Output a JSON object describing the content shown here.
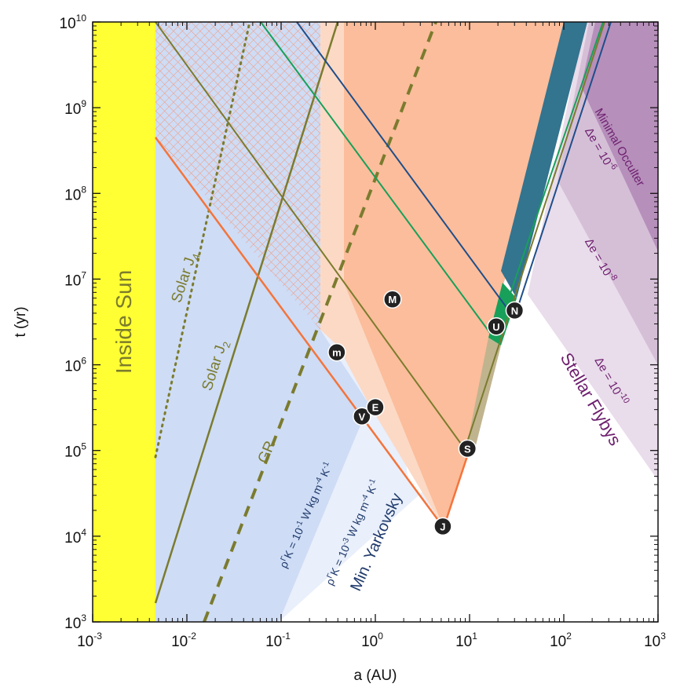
{
  "chart_data": {
    "type": "area",
    "title": "",
    "xlabel": "a (AU)",
    "ylabel": "t (yr)",
    "xscale": "log",
    "yscale": "log",
    "xlim": [
      0.001,
      1000
    ],
    "ylim": [
      1000,
      10000000000
    ],
    "x_ticks": [
      {
        "base": "10",
        "exp": "-3",
        "value": 0.001
      },
      {
        "base": "10",
        "exp": "-2",
        "value": 0.01
      },
      {
        "base": "10",
        "exp": "-1",
        "value": 0.1
      },
      {
        "base": "10",
        "exp": "0",
        "value": 1
      },
      {
        "base": "10",
        "exp": "1",
        "value": 10
      },
      {
        "base": "10",
        "exp": "2",
        "value": 100
      },
      {
        "base": "10",
        "exp": "3",
        "value": 1000
      }
    ],
    "y_ticks": [
      {
        "base": "10",
        "exp": "3",
        "value": 1000
      },
      {
        "base": "10",
        "exp": "4",
        "value": 10000
      },
      {
        "base": "10",
        "exp": "5",
        "value": 100000
      },
      {
        "base": "10",
        "exp": "6",
        "value": 1000000
      },
      {
        "base": "10",
        "exp": "7",
        "value": 10000000
      },
      {
        "base": "10",
        "exp": "8",
        "value": 100000000
      },
      {
        "base": "10",
        "exp": "9",
        "value": 1000000000
      },
      {
        "base": "10",
        "exp": "10",
        "value": 10000000000
      }
    ],
    "planets": [
      {
        "label": "m",
        "name": "Mercury",
        "a": 0.39,
        "t": 1400000
      },
      {
        "label": "V",
        "name": "Venus",
        "a": 0.72,
        "t": 250000
      },
      {
        "label": "E",
        "name": "Earth",
        "a": 1.0,
        "t": 320000
      },
      {
        "label": "M",
        "name": "Mars",
        "a": 1.52,
        "t": 5800000
      },
      {
        "label": "J",
        "name": "Jupiter",
        "a": 5.2,
        "t": 13000
      },
      {
        "label": "S",
        "name": "Saturn",
        "a": 9.5,
        "t": 105000
      },
      {
        "label": "U",
        "name": "Uranus",
        "a": 19.2,
        "t": 2800000
      },
      {
        "label": "N",
        "name": "Neptune",
        "a": 30.1,
        "t": 4300000
      }
    ],
    "annotations": {
      "inside_sun": "Inside Sun",
      "solar_j4": {
        "base": "Solar J",
        "sub": "4"
      },
      "solar_j2": {
        "base": "Solar J",
        "sub": "2"
      },
      "gr": "GR",
      "yark1": {
        "rho": "ρ",
        "gamma": "Γ",
        "k": "K = 10",
        "exp": "-1",
        "units_a": " W kg m",
        "units_exp_a": "-4",
        "units_b": " K",
        "units_exp_b": "-1"
      },
      "yark2": {
        "rho": "ρ",
        "gamma": "Γ",
        "k": "K = 10",
        "exp": "-3",
        "units_a": " W kg m",
        "units_exp_a": "-4",
        "units_b": " K",
        "units_exp_b": "-1"
      },
      "min_yarkovsky": "Min. Yarkovsky",
      "minimal_occulter": "Minimal Occulter",
      "de6": {
        "text": "Δe = 10",
        "exp": "-6"
      },
      "de8": {
        "text": "Δe = 10",
        "exp": "-8"
      },
      "de10": {
        "text": "Δe = 10",
        "exp": "-10"
      },
      "stellar_flybys": "Stellar Flybys"
    },
    "colors": {
      "sun": "#ffff33",
      "yarkovsky_strong": "#cedcf5",
      "yarkovsky_weak": "#e9effb",
      "salmon": "#fbbd9b",
      "salmon_light": "#fcd9c5",
      "hatch": "#f4977a",
      "orange_line": "#f4743b",
      "olive": "#7b7b2e",
      "green": "#18a05a",
      "navy": "#1f4e8a",
      "teal": "#33748f",
      "purple_dark": "#b68fbb",
      "purple_mid": "#d5bfd7",
      "purple_light": "#e9dceb",
      "purple_text": "#6d1f6e",
      "planet_fill": "#222222"
    }
  }
}
